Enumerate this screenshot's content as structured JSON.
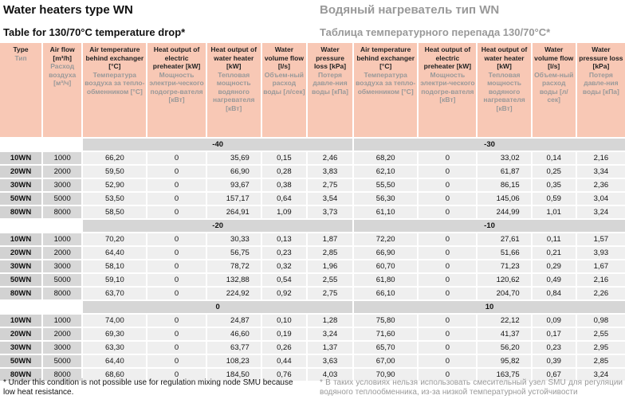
{
  "title_en": "Water heaters type WN",
  "title_ru": "Водяный нагреватель тип WN",
  "subtitle_en": "Table for 130/70°C temperature drop*",
  "subtitle_ru": "Таблица температурного перепада 130/70°C*",
  "headers": [
    {
      "en": "Type",
      "ru": "Тип"
    },
    {
      "en": "Air flow [m³/h]",
      "ru": "Расход воздуха [м³/ч]"
    },
    {
      "en": "Air temperature behind exchanger [°C]",
      "ru": "Температура воздуха за тепло-обменником [°C]"
    },
    {
      "en": "Heat output of electric preheater [kW]",
      "ru": "Мощность электри-ческого подогре-вателя [кВт]"
    },
    {
      "en": "Heat output of water heater [kW]",
      "ru": "Тепловая мощность водяного нагревателя [кВт]"
    },
    {
      "en": "Water volume flow [l/s]",
      "ru": "Объем-ный расход воды [л/сек]"
    },
    {
      "en": "Water pressure loss [kPa]",
      "ru": "Потеря давле-ния воды [кПа]"
    },
    {
      "en": "Air temperature behind exchanger [°C]",
      "ru": "Температура воздуха за тепло-обменником [°C]"
    },
    {
      "en": "Heat output of electric preheater [kW]",
      "ru": "Мощность электри-ческого подогре-вателя [кВт]"
    },
    {
      "en": "Heat output of water heater [kW]",
      "ru": "Тепловая мощность водяного нагревателя [кВт]"
    },
    {
      "en": "Water volume flow [l/s]",
      "ru": "Объем-ный расход воды [л/сек]"
    },
    {
      "en": "Water pressure loss [kPa]",
      "ru": "Потеря давле-ния воды [кПа]"
    }
  ],
  "blocks": [
    {
      "left": "-40",
      "right": "-30",
      "rows": [
        [
          "10WN",
          "1000",
          "66,20",
          "0",
          "35,69",
          "0,15",
          "2,46",
          "68,20",
          "0",
          "33,02",
          "0,14",
          "2,16"
        ],
        [
          "20WN",
          "2000",
          "59,50",
          "0",
          "66,90",
          "0,28",
          "3,83",
          "62,10",
          "0",
          "61,87",
          "0,25",
          "3,34"
        ],
        [
          "30WN",
          "3000",
          "52,90",
          "0",
          "93,67",
          "0,38",
          "2,75",
          "55,50",
          "0",
          "86,15",
          "0,35",
          "2,36"
        ],
        [
          "50WN",
          "5000",
          "53,50",
          "0",
          "157,17",
          "0,64",
          "3,54",
          "56,30",
          "0",
          "145,06",
          "0,59",
          "3,04"
        ],
        [
          "80WN",
          "8000",
          "58,50",
          "0",
          "264,91",
          "1,09",
          "3,73",
          "61,10",
          "0",
          "244,99",
          "1,01",
          "3,24"
        ]
      ]
    },
    {
      "left": "-20",
      "right": "-10",
      "rows": [
        [
          "10WN",
          "1000",
          "70,20",
          "0",
          "30,33",
          "0,13",
          "1,87",
          "72,20",
          "0",
          "27,61",
          "0,11",
          "1,57"
        ],
        [
          "20WN",
          "2000",
          "64,40",
          "0",
          "56,75",
          "0,23",
          "2,85",
          "66,90",
          "0",
          "51,66",
          "0,21",
          "3,93"
        ],
        [
          "30WN",
          "3000",
          "58,10",
          "0",
          "78,72",
          "0,32",
          "1,96",
          "60,70",
          "0",
          "71,23",
          "0,29",
          "1,67"
        ],
        [
          "50WN",
          "5000",
          "59,10",
          "0",
          "132,88",
          "0,54",
          "2,55",
          "61,80",
          "0",
          "120,62",
          "0,49",
          "2,16"
        ],
        [
          "80WN",
          "8000",
          "63,70",
          "0",
          "224,92",
          "0,92",
          "2,75",
          "66,10",
          "0",
          "204,70",
          "0,84",
          "2,26"
        ]
      ]
    },
    {
      "left": "0",
      "right": "10",
      "rows": [
        [
          "10WN",
          "1000",
          "74,00",
          "0",
          "24,87",
          "0,10",
          "1,28",
          "75,80",
          "0",
          "22,12",
          "0,09",
          "0,98"
        ],
        [
          "20WN",
          "2000",
          "69,30",
          "0",
          "46,60",
          "0,19",
          "3,24",
          "71,60",
          "0",
          "41,37",
          "0,17",
          "2,55"
        ],
        [
          "30WN",
          "3000",
          "63,30",
          "0",
          "63,77",
          "0,26",
          "1,37",
          "65,70",
          "0",
          "56,20",
          "0,23",
          "2,95"
        ],
        [
          "50WN",
          "5000",
          "64,40",
          "0",
          "108,23",
          "0,44",
          "3,63",
          "67,00",
          "0",
          "95,82",
          "0,39",
          "2,85"
        ],
        [
          "80WN",
          "8000",
          "68,60",
          "0",
          "184,50",
          "0,76",
          "4,03",
          "70,90",
          "0",
          "163,75",
          "0,67",
          "3,24"
        ]
      ]
    }
  ],
  "footnote_en": "* Under this condition is not possible use for regulation mixing node SMU because low heat resistance.",
  "footnote_ru": "* В таких условиях нельзя использовать смесительный узел SMU для регуляции водяного теплообменника, из-за низкой температурной устойчивости"
}
